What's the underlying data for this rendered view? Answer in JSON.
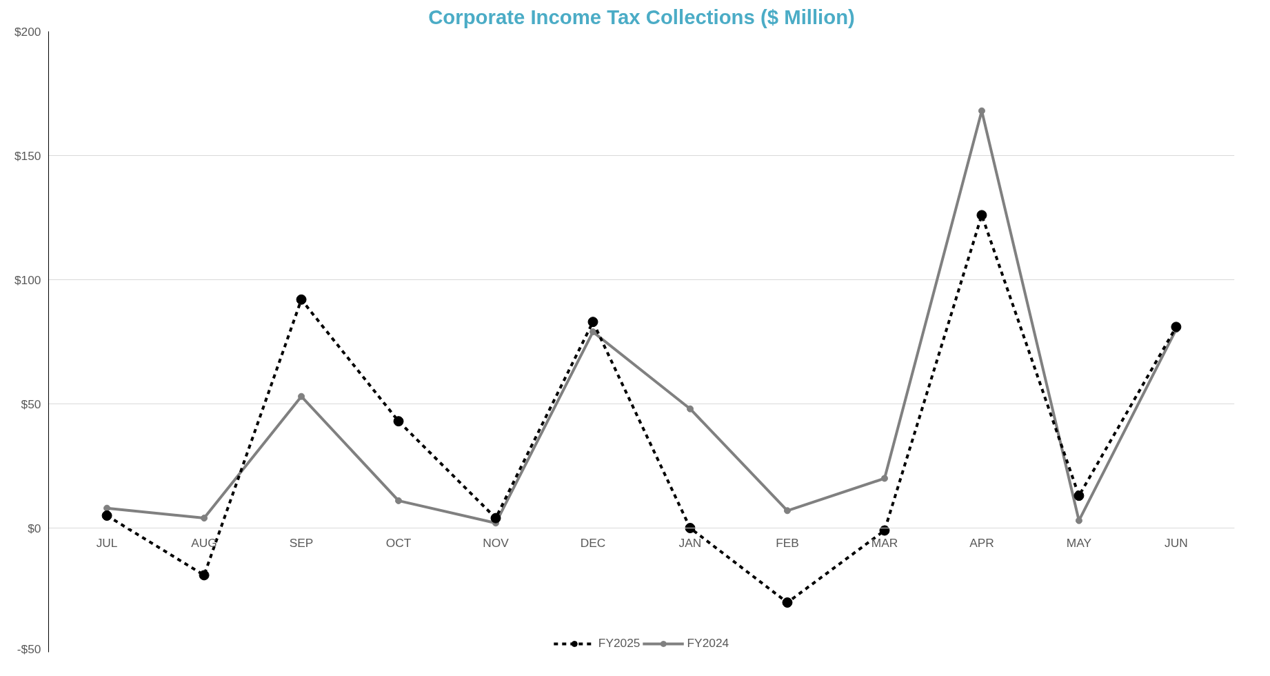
{
  "chart_data": {
    "type": "line",
    "title": "Corporate Income Tax Collections ($ Million)",
    "categories": [
      "JUL",
      "AUG",
      "SEP",
      "OCT",
      "NOV",
      "DEC",
      "JAN",
      "FEB",
      "MAR",
      "APR",
      "MAY",
      "JUN"
    ],
    "series": [
      {
        "name": "FY2025",
        "color": "#000000",
        "line_style": "dashed",
        "values": [
          5,
          -19,
          92,
          43,
          4,
          83,
          0,
          -30,
          -1,
          126,
          13,
          81
        ]
      },
      {
        "name": "FY2024",
        "color": "#808080",
        "line_style": "solid",
        "values": [
          8,
          4,
          53,
          11,
          2,
          79,
          48,
          7,
          20,
          168,
          3,
          80
        ]
      }
    ],
    "ylim": [
      -50,
      200
    ],
    "yticks": [
      {
        "value": -50,
        "label": "-$50"
      },
      {
        "value": 0,
        "label": "$0"
      },
      {
        "value": 50,
        "label": "$50"
      },
      {
        "value": 100,
        "label": "$100"
      },
      {
        "value": 150,
        "label": "$150"
      },
      {
        "value": 200,
        "label": "$200"
      }
    ],
    "grid": "y",
    "legend": "bottom",
    "marker": "circle"
  }
}
